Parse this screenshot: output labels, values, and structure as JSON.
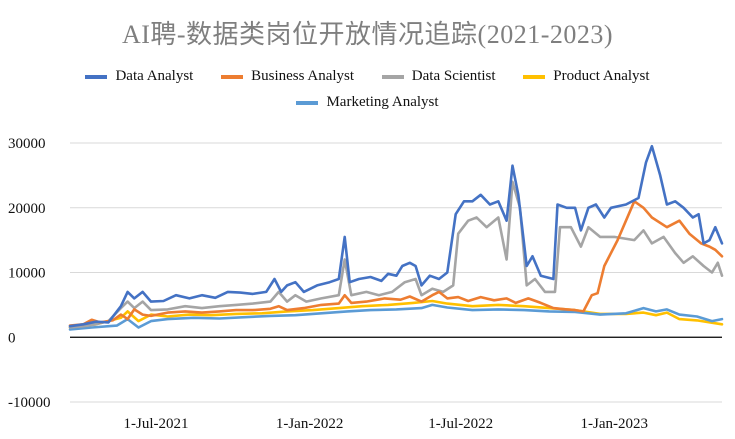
{
  "chart_data": {
    "type": "line",
    "title": "AI聘-数据类岗位开放情况追踪(2021-2023)",
    "xlabel": "",
    "ylabel": "",
    "ylim": [
      -10000,
      30000
    ],
    "yticks": [
      "30000",
      "20000",
      "10000",
      "0",
      "-10000"
    ],
    "ytick_values": [
      30000,
      20000,
      10000,
      0,
      -10000
    ],
    "xlim": [
      "2021-03-20",
      "2023-05-10"
    ],
    "xticks": [
      "1-Jul-2021",
      "1-Jan-2022",
      "1-Jul-2022",
      "1-Jan-2023"
    ],
    "xtick_dates": [
      "2021-07-01",
      "2022-01-01",
      "2022-07-01",
      "2023-01-01"
    ],
    "grid": "horizontal",
    "legend_position": "top",
    "series": [
      {
        "name": "Data Analyst",
        "color": "#4472C4",
        "points": [
          [
            "2021-03-20",
            1700
          ],
          [
            "2021-04-05",
            2000
          ],
          [
            "2021-04-20",
            2400
          ],
          [
            "2021-05-05",
            2300
          ],
          [
            "2021-05-20",
            4800
          ],
          [
            "2021-05-28",
            7000
          ],
          [
            "2021-06-05",
            6000
          ],
          [
            "2021-06-15",
            7000
          ],
          [
            "2021-06-25",
            5500
          ],
          [
            "2021-07-10",
            5600
          ],
          [
            "2021-07-25",
            6500
          ],
          [
            "2021-08-10",
            6000
          ],
          [
            "2021-08-25",
            6500
          ],
          [
            "2021-09-10",
            6100
          ],
          [
            "2021-09-25",
            7000
          ],
          [
            "2021-10-10",
            6900
          ],
          [
            "2021-10-25",
            6700
          ],
          [
            "2021-11-10",
            7000
          ],
          [
            "2021-11-20",
            9000
          ],
          [
            "2021-11-28",
            7000
          ],
          [
            "2021-12-05",
            8000
          ],
          [
            "2021-12-15",
            8500
          ],
          [
            "2021-12-25",
            7000
          ],
          [
            "2022-01-10",
            8000
          ],
          [
            "2022-01-25",
            8500
          ],
          [
            "2022-02-05",
            9000
          ],
          [
            "2022-02-12",
            15500
          ],
          [
            "2022-02-18",
            8500
          ],
          [
            "2022-03-01",
            9000
          ],
          [
            "2022-03-15",
            9300
          ],
          [
            "2022-03-28",
            8700
          ],
          [
            "2022-04-05",
            9800
          ],
          [
            "2022-04-15",
            9500
          ],
          [
            "2022-04-22",
            11000
          ],
          [
            "2022-05-01",
            11500
          ],
          [
            "2022-05-08",
            11000
          ],
          [
            "2022-05-15",
            8000
          ],
          [
            "2022-05-25",
            9500
          ],
          [
            "2022-06-05",
            9000
          ],
          [
            "2022-06-15",
            10000
          ],
          [
            "2022-06-25",
            19000
          ],
          [
            "2022-07-05",
            21000
          ],
          [
            "2022-07-15",
            21000
          ],
          [
            "2022-07-25",
            22000
          ],
          [
            "2022-08-05",
            20500
          ],
          [
            "2022-08-15",
            21000
          ],
          [
            "2022-08-25",
            18000
          ],
          [
            "2022-09-01",
            26500
          ],
          [
            "2022-09-08",
            22000
          ],
          [
            "2022-09-18",
            11000
          ],
          [
            "2022-09-25",
            12500
          ],
          [
            "2022-10-05",
            9500
          ],
          [
            "2022-10-20",
            9000
          ],
          [
            "2022-10-25",
            20500
          ],
          [
            "2022-11-05",
            20000
          ],
          [
            "2022-11-15",
            20000
          ],
          [
            "2022-11-22",
            16500
          ],
          [
            "2022-12-01",
            20000
          ],
          [
            "2022-12-10",
            20500
          ],
          [
            "2022-12-20",
            18500
          ],
          [
            "2022-12-28",
            20000
          ],
          [
            "2023-01-15",
            20500
          ],
          [
            "2023-01-30",
            21500
          ],
          [
            "2023-02-08",
            27000
          ],
          [
            "2023-02-15",
            29500
          ],
          [
            "2023-02-25",
            25000
          ],
          [
            "2023-03-05",
            20500
          ],
          [
            "2023-03-15",
            21000
          ],
          [
            "2023-03-25",
            20000
          ],
          [
            "2023-04-05",
            18500
          ],
          [
            "2023-04-12",
            19000
          ],
          [
            "2023-04-18",
            14500
          ],
          [
            "2023-04-25",
            15000
          ],
          [
            "2023-05-02",
            17000
          ],
          [
            "2023-05-10",
            14500
          ]
        ]
      },
      {
        "name": "Business Analyst",
        "color": "#ED7D31",
        "points": [
          [
            "2021-03-20",
            1800
          ],
          [
            "2021-04-05",
            2000
          ],
          [
            "2021-04-15",
            2700
          ],
          [
            "2021-04-25",
            2300
          ],
          [
            "2021-05-10",
            2600
          ],
          [
            "2021-05-20",
            3500
          ],
          [
            "2021-05-28",
            2800
          ],
          [
            "2021-06-05",
            4300
          ],
          [
            "2021-06-15",
            3500
          ],
          [
            "2021-06-25",
            3300
          ],
          [
            "2021-07-15",
            3800
          ],
          [
            "2021-08-05",
            4000
          ],
          [
            "2021-08-25",
            3800
          ],
          [
            "2021-09-15",
            4000
          ],
          [
            "2021-10-05",
            4200
          ],
          [
            "2021-10-25",
            4200
          ],
          [
            "2021-11-15",
            4400
          ],
          [
            "2021-11-25",
            4800
          ],
          [
            "2021-12-05",
            4200
          ],
          [
            "2021-12-25",
            4500
          ],
          [
            "2022-01-15",
            5000
          ],
          [
            "2022-02-05",
            5200
          ],
          [
            "2022-02-12",
            6500
          ],
          [
            "2022-02-20",
            5300
          ],
          [
            "2022-03-10",
            5500
          ],
          [
            "2022-04-01",
            6000
          ],
          [
            "2022-04-20",
            5800
          ],
          [
            "2022-05-01",
            6300
          ],
          [
            "2022-05-15",
            5500
          ],
          [
            "2022-05-28",
            6500
          ],
          [
            "2022-06-05",
            7000
          ],
          [
            "2022-06-15",
            6000
          ],
          [
            "2022-06-28",
            6200
          ],
          [
            "2022-07-10",
            5600
          ],
          [
            "2022-07-25",
            6200
          ],
          [
            "2022-08-10",
            5700
          ],
          [
            "2022-08-25",
            6000
          ],
          [
            "2022-09-05",
            5300
          ],
          [
            "2022-09-20",
            6000
          ],
          [
            "2022-10-05",
            5300
          ],
          [
            "2022-10-20",
            4500
          ],
          [
            "2022-11-05",
            4300
          ],
          [
            "2022-11-15",
            4200
          ],
          [
            "2022-11-25",
            4000
          ],
          [
            "2022-12-05",
            6500
          ],
          [
            "2022-12-12",
            6800
          ],
          [
            "2022-12-20",
            11000
          ],
          [
            "2023-01-05",
            15000
          ],
          [
            "2023-01-25",
            21000
          ],
          [
            "2023-02-05",
            20000
          ],
          [
            "2023-02-15",
            18500
          ],
          [
            "2023-03-05",
            17000
          ],
          [
            "2023-03-20",
            18000
          ],
          [
            "2023-04-01",
            16000
          ],
          [
            "2023-04-15",
            14500
          ],
          [
            "2023-04-25",
            14000
          ],
          [
            "2023-05-02",
            13500
          ],
          [
            "2023-05-10",
            12500
          ]
        ]
      },
      {
        "name": "Data Scientist",
        "color": "#A5A5A5",
        "points": [
          [
            "2021-03-20",
            1500
          ],
          [
            "2021-04-05",
            1700
          ],
          [
            "2021-04-20",
            2000
          ],
          [
            "2021-05-05",
            2500
          ],
          [
            "2021-05-20",
            4500
          ],
          [
            "2021-05-28",
            5500
          ],
          [
            "2021-06-05",
            4500
          ],
          [
            "2021-06-15",
            5500
          ],
          [
            "2021-06-25",
            4200
          ],
          [
            "2021-07-15",
            4300
          ],
          [
            "2021-08-05",
            4800
          ],
          [
            "2021-08-25",
            4500
          ],
          [
            "2021-09-15",
            4800
          ],
          [
            "2021-10-05",
            5000
          ],
          [
            "2021-10-25",
            5200
          ],
          [
            "2021-11-15",
            5500
          ],
          [
            "2021-11-25",
            7000
          ],
          [
            "2021-12-05",
            5500
          ],
          [
            "2021-12-15",
            6500
          ],
          [
            "2021-12-28",
            5500
          ],
          [
            "2022-01-15",
            6000
          ],
          [
            "2022-02-05",
            6500
          ],
          [
            "2022-02-12",
            12000
          ],
          [
            "2022-02-20",
            6500
          ],
          [
            "2022-03-10",
            7000
          ],
          [
            "2022-03-25",
            6500
          ],
          [
            "2022-04-10",
            7000
          ],
          [
            "2022-04-25",
            8500
          ],
          [
            "2022-05-08",
            9000
          ],
          [
            "2022-05-15",
            6500
          ],
          [
            "2022-05-28",
            7500
          ],
          [
            "2022-06-10",
            7000
          ],
          [
            "2022-06-22",
            8000
          ],
          [
            "2022-06-28",
            16000
          ],
          [
            "2022-07-10",
            18000
          ],
          [
            "2022-07-20",
            18500
          ],
          [
            "2022-08-01",
            17000
          ],
          [
            "2022-08-15",
            18500
          ],
          [
            "2022-08-25",
            12000
          ],
          [
            "2022-09-01",
            24000
          ],
          [
            "2022-09-10",
            20000
          ],
          [
            "2022-09-18",
            8000
          ],
          [
            "2022-09-28",
            9000
          ],
          [
            "2022-10-10",
            7000
          ],
          [
            "2022-10-22",
            7000
          ],
          [
            "2022-10-28",
            17000
          ],
          [
            "2022-11-10",
            17000
          ],
          [
            "2022-11-22",
            14000
          ],
          [
            "2022-12-01",
            17000
          ],
          [
            "2022-12-15",
            15500
          ],
          [
            "2023-01-01",
            15500
          ],
          [
            "2023-01-25",
            15000
          ],
          [
            "2023-02-05",
            16500
          ],
          [
            "2023-02-15",
            14500
          ],
          [
            "2023-03-01",
            15500
          ],
          [
            "2023-03-15",
            13000
          ],
          [
            "2023-03-25",
            11500
          ],
          [
            "2023-04-05",
            12500
          ],
          [
            "2023-04-18",
            11000
          ],
          [
            "2023-04-28",
            10000
          ],
          [
            "2023-05-05",
            11500
          ],
          [
            "2023-05-10",
            9500
          ]
        ]
      },
      {
        "name": "Product Analyst",
        "color": "#FFC000",
        "points": [
          [
            "2021-03-20",
            1500
          ],
          [
            "2021-04-20",
            2000
          ],
          [
            "2021-05-20",
            3000
          ],
          [
            "2021-05-28",
            4000
          ],
          [
            "2021-06-10",
            2500
          ],
          [
            "2021-06-25",
            3500
          ],
          [
            "2021-07-15",
            3200
          ],
          [
            "2021-08-10",
            3500
          ],
          [
            "2021-09-05",
            3400
          ],
          [
            "2021-10-05",
            3600
          ],
          [
            "2021-11-05",
            3700
          ],
          [
            "2021-12-05",
            4000
          ],
          [
            "2022-01-05",
            4200
          ],
          [
            "2022-02-05",
            4500
          ],
          [
            "2022-03-05",
            4800
          ],
          [
            "2022-04-05",
            5000
          ],
          [
            "2022-05-05",
            5300
          ],
          [
            "2022-05-28",
            5600
          ],
          [
            "2022-06-15",
            5200
          ],
          [
            "2022-07-15",
            4800
          ],
          [
            "2022-08-15",
            5000
          ],
          [
            "2022-09-15",
            4800
          ],
          [
            "2022-10-15",
            4500
          ],
          [
            "2022-11-15",
            4200
          ],
          [
            "2022-12-15",
            3600
          ],
          [
            "2023-01-15",
            3600
          ],
          [
            "2023-02-05",
            3800
          ],
          [
            "2023-02-20",
            3400
          ],
          [
            "2023-03-05",
            3800
          ],
          [
            "2023-03-20",
            2800
          ],
          [
            "2023-04-10",
            2600
          ],
          [
            "2023-05-10",
            2000
          ]
        ]
      },
      {
        "name": "Marketing Analyst",
        "color": "#5B9BD5",
        "points": [
          [
            "2021-03-20",
            1200
          ],
          [
            "2021-04-15",
            1500
          ],
          [
            "2021-05-15",
            1800
          ],
          [
            "2021-05-28",
            2800
          ],
          [
            "2021-06-10",
            1500
          ],
          [
            "2021-06-25",
            2500
          ],
          [
            "2021-07-15",
            2800
          ],
          [
            "2021-08-15",
            3000
          ],
          [
            "2021-09-15",
            2900
          ],
          [
            "2021-10-15",
            3100
          ],
          [
            "2021-11-15",
            3300
          ],
          [
            "2021-12-15",
            3400
          ],
          [
            "2022-01-15",
            3700
          ],
          [
            "2022-02-15",
            4000
          ],
          [
            "2022-03-15",
            4200
          ],
          [
            "2022-04-15",
            4300
          ],
          [
            "2022-05-15",
            4500
          ],
          [
            "2022-05-28",
            5000
          ],
          [
            "2022-06-15",
            4600
          ],
          [
            "2022-07-15",
            4200
          ],
          [
            "2022-08-15",
            4300
          ],
          [
            "2022-09-15",
            4200
          ],
          [
            "2022-10-15",
            4000
          ],
          [
            "2022-11-15",
            3900
          ],
          [
            "2022-12-15",
            3500
          ],
          [
            "2023-01-15",
            3700
          ],
          [
            "2023-02-05",
            4500
          ],
          [
            "2023-02-20",
            4000
          ],
          [
            "2023-03-05",
            4300
          ],
          [
            "2023-03-20",
            3500
          ],
          [
            "2023-04-10",
            3200
          ],
          [
            "2023-04-28",
            2500
          ],
          [
            "2023-05-10",
            2800
          ]
        ]
      }
    ]
  }
}
